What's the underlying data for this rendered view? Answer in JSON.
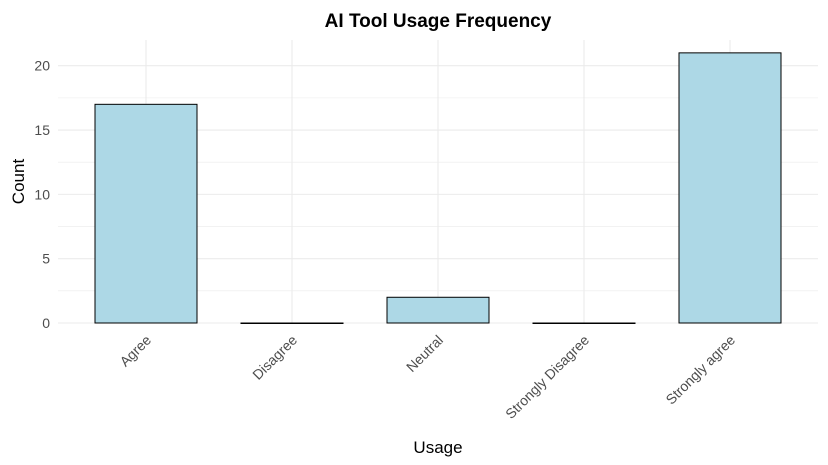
{
  "chart_data": {
    "type": "bar",
    "title": "AI Tool Usage Frequency",
    "xlabel": "Usage",
    "ylabel": "Count",
    "categories": [
      "Agree",
      "Disagree",
      "Neutral",
      "Strongly Disagree",
      "Strongly agree"
    ],
    "values": [
      17,
      0,
      2,
      0,
      21
    ],
    "ylim": [
      0,
      22
    ],
    "yticks": [
      0,
      5,
      10,
      15,
      20
    ],
    "grid": true,
    "legend": "none",
    "colors": {
      "bar_fill": "#add8e6",
      "bar_stroke": "#000000",
      "grid": "#ebebeb"
    }
  }
}
